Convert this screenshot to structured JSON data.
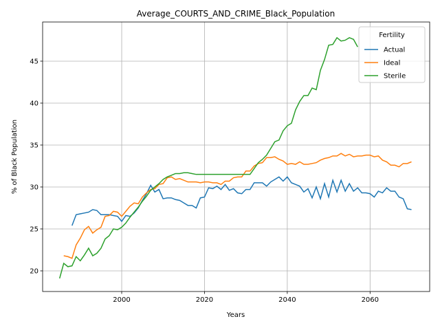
{
  "chart_data": {
    "type": "line",
    "title": "Average_COURTS_AND_CRIME_Black_Population",
    "x_label": "Years",
    "y_label": "% of Black Population",
    "legend_title": "Fertility",
    "legend": "upper right",
    "grid": true,
    "x": [
      1985,
      1986,
      1987,
      1988,
      1989,
      1990,
      1991,
      1992,
      1993,
      1994,
      1995,
      1996,
      1997,
      1998,
      1999,
      2000,
      2001,
      2002,
      2003,
      2004,
      2005,
      2006,
      2007,
      2008,
      2009,
      2010,
      2011,
      2012,
      2013,
      2014,
      2015,
      2016,
      2017,
      2018,
      2019,
      2020,
      2021,
      2022,
      2023,
      2024,
      2025,
      2026,
      2027,
      2028,
      2029,
      2030,
      2031,
      2032,
      2033,
      2034,
      2035,
      2036,
      2037,
      2038,
      2039,
      2040,
      2041,
      2042,
      2043,
      2044,
      2045,
      2046,
      2047,
      2048,
      2049,
      2050,
      2051,
      2052,
      2053,
      2054,
      2055,
      2056,
      2057,
      2058,
      2059,
      2060,
      2061,
      2062,
      2063,
      2064,
      2065,
      2066,
      2067,
      2068,
      2069,
      2070
    ],
    "series": [
      {
        "name": "Actual",
        "color": "#1f77b4",
        "values": [
          null,
          null,
          null,
          25.4,
          26.7,
          26.8,
          26.9,
          27.0,
          27.3,
          27.2,
          26.7,
          26.7,
          26.7,
          26.6,
          26.5,
          25.9,
          26.6,
          26.5,
          26.9,
          27.5,
          28.4,
          29.2,
          30.2,
          29.4,
          29.7,
          28.6,
          28.7,
          28.7,
          28.5,
          28.4,
          28.1,
          27.8,
          27.8,
          27.5,
          28.7,
          28.8,
          29.9,
          29.8,
          30.1,
          29.7,
          30.3,
          29.6,
          29.8,
          29.3,
          29.2,
          29.7,
          29.7,
          30.5,
          30.5,
          30.5,
          30.1,
          30.6,
          30.9,
          31.2,
          30.7,
          31.2,
          30.5,
          30.3,
          30.1,
          29.4,
          29.8,
          28.7,
          30.0,
          28.6,
          30.4,
          28.8,
          30.8,
          29.4,
          30.8,
          29.5,
          30.4,
          29.5,
          29.9,
          29.3,
          29.3,
          29.2,
          28.8,
          29.5,
          29.3,
          29.9,
          29.5,
          29.5,
          28.8,
          28.6,
          27.4,
          27.3
        ]
      },
      {
        "name": "Ideal",
        "color": "#ff7f0e",
        "values": [
          null,
          21.8,
          21.7,
          21.5,
          23.1,
          23.9,
          24.9,
          25.3,
          24.5,
          24.9,
          25.2,
          26.5,
          26.6,
          27.1,
          27.0,
          26.5,
          27.1,
          27.7,
          28.1,
          28.0,
          28.8,
          29.3,
          29.7,
          29.8,
          30.3,
          30.4,
          31.1,
          31.2,
          30.9,
          31.0,
          30.8,
          30.6,
          30.6,
          30.6,
          30.5,
          30.6,
          30.6,
          30.5,
          30.5,
          30.3,
          30.7,
          30.7,
          31.1,
          31.2,
          31.2,
          31.9,
          31.9,
          32.5,
          32.8,
          32.9,
          33.5,
          33.5,
          33.6,
          33.3,
          33.1,
          32.7,
          32.8,
          32.7,
          33.0,
          32.7,
          32.7,
          32.8,
          32.9,
          33.2,
          33.4,
          33.5,
          33.7,
          33.7,
          34.0,
          33.7,
          33.9,
          33.6,
          33.7,
          33.7,
          33.8,
          33.8,
          33.6,
          33.7,
          33.2,
          33.0,
          32.6,
          32.6,
          32.4,
          32.8,
          32.8,
          33.0
        ]
      },
      {
        "name": "Sterile",
        "color": "#2ca02c",
        "values": [
          19.1,
          20.9,
          20.5,
          20.6,
          21.7,
          21.2,
          21.9,
          22.7,
          21.8,
          22.1,
          22.7,
          23.8,
          24.2,
          25.0,
          24.9,
          25.2,
          25.7,
          26.4,
          27.0,
          27.6,
          28.3,
          28.9,
          29.6,
          30.0,
          30.4,
          30.9,
          31.2,
          31.4,
          31.6,
          31.6,
          31.7,
          31.7,
          31.6,
          31.5,
          31.5,
          31.5,
          31.5,
          31.5,
          31.5,
          31.5,
          31.5,
          31.5,
          31.5,
          31.5,
          31.5,
          31.5,
          31.5,
          32.2,
          32.9,
          33.3,
          33.8,
          34.6,
          35.4,
          35.6,
          36.7,
          37.3,
          37.6,
          39.2,
          40.2,
          40.9,
          40.9,
          41.8,
          41.6,
          43.9,
          45.2,
          46.9,
          47.0,
          47.8,
          47.4,
          47.5,
          47.8,
          47.6,
          46.7,
          null,
          null,
          null,
          null,
          null,
          null,
          null,
          null,
          null,
          null,
          null,
          null,
          null
        ]
      }
    ],
    "xlim": [
      1980.9,
      2074.4
    ],
    "xticks": [
      2000,
      2020,
      2040,
      2060
    ],
    "ylim": [
      17.54,
      49.67
    ],
    "yticks": [
      20,
      25,
      30,
      35,
      40,
      45
    ]
  }
}
